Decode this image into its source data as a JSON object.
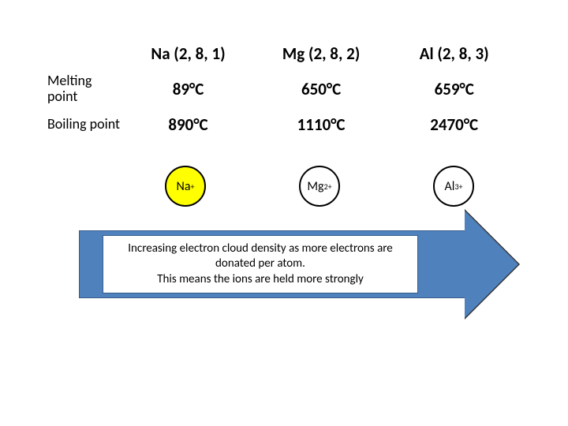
{
  "table": {
    "headers": [
      "Na (2, 8, 1)",
      "Mg (2, 8, 2)",
      "Al (2, 8, 3)"
    ],
    "rows": [
      {
        "label": "Melting point",
        "values": [
          "89°C",
          "650°C",
          "659°C"
        ]
      },
      {
        "label": "Boiling point",
        "values": [
          "890°C",
          "1110°C",
          "2470°C"
        ]
      }
    ]
  },
  "ions": [
    {
      "base": "Na",
      "charge": "+",
      "fill": "#ffff00"
    },
    {
      "base": "Mg",
      "charge": "2+",
      "fill": "#ffffff"
    },
    {
      "base": "Al",
      "charge": "3+",
      "fill": "#ffffff"
    }
  ],
  "arrow": {
    "fill": "#4f81bd",
    "border": "#385d8a"
  },
  "caption": "Increasing electron cloud density as more electrons are donated per atom.\nThis means the ions are held more strongly",
  "colors": {
    "background": "#ffffff",
    "text": "#000000"
  }
}
